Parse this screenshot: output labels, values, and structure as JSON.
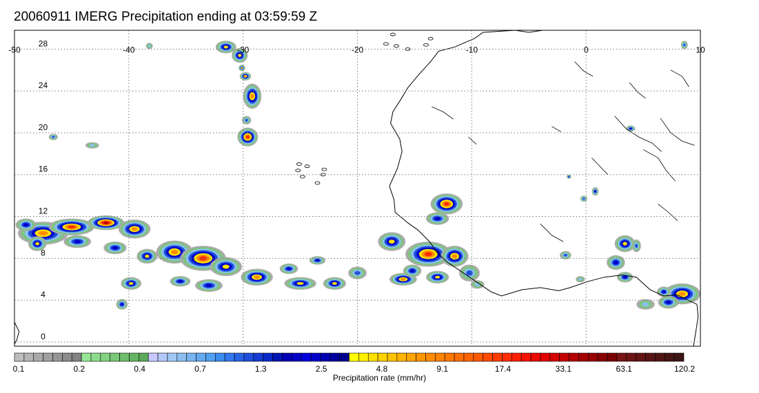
{
  "title": "20060911 IMERG Precipitation ending at 03:59:59 Z",
  "map": {
    "lon_range": [
      -50,
      10
    ],
    "lat_range": [
      -0.4,
      29.8
    ],
    "lon_labels": [
      "-50",
      "-40",
      "-30",
      "-20",
      "-10",
      "0",
      "10"
    ],
    "lon_values": [
      -50,
      -40,
      -30,
      -20,
      -10,
      0,
      10
    ],
    "lat_labels": [
      "28",
      "24",
      "20",
      "16",
      "12",
      "8",
      "4",
      "0"
    ],
    "lat_values": [
      28,
      24,
      20,
      16,
      12,
      8,
      4,
      0
    ],
    "gridlines": "dotted"
  },
  "colorbar": {
    "title": "Precipitation rate (mm/hr)",
    "tick_labels": [
      "0.1",
      "0.2",
      "0.4",
      "0.7",
      "1.3",
      "2.5",
      "4.8",
      "9.1",
      "17.4",
      "33.1",
      "63.1",
      "120.2"
    ],
    "colors": [
      "#bebebe",
      "#b4b4b4",
      "#aaaaaa",
      "#a0a0a0",
      "#969696",
      "#8c8c8c",
      "#828282",
      "#96e696",
      "#8cdc8c",
      "#82d282",
      "#78c878",
      "#6ebe6e",
      "#64b464",
      "#5aaa5a",
      "#c8c8ff",
      "#b4c8fa",
      "#a0c8f5",
      "#8cbef0",
      "#78b4f0",
      "#64aaf0",
      "#50a0f0",
      "#3c8cf0",
      "#3278f0",
      "#2864e6",
      "#1e50dc",
      "#143cd2",
      "#0a28c8",
      "#0014b4",
      "#0000b4",
      "#0000c8",
      "#0000dc",
      "#0000c8",
      "#0000b4",
      "#0000a0",
      "#00008c",
      "#ffff00",
      "#fff000",
      "#ffe100",
      "#ffd200",
      "#ffc300",
      "#ffb400",
      "#ffa500",
      "#ff9600",
      "#ff8c00",
      "#ff8200",
      "#ff7800",
      "#ff6e00",
      "#ff6400",
      "#ff5a00",
      "#ff4b00",
      "#ff3c00",
      "#ff2d00",
      "#ff1e00",
      "#f51400",
      "#eb0a00",
      "#e10000",
      "#d20000",
      "#c30000",
      "#b40000",
      "#a50000",
      "#960000",
      "#870000",
      "#780000",
      "#781414",
      "#6e1414",
      "#641414",
      "#5a1414",
      "#501414",
      "#461414",
      "#3c1414"
    ]
  },
  "precip_palette": {
    "light": "#aaaaaa",
    "green": "#78c878",
    "lightblue": "#8cbef0",
    "blue": "#1e50dc",
    "darkblue": "#0000c8",
    "yellow": "#ffe100",
    "orange": "#ff8c00",
    "red": "#ff2d00",
    "darkred": "#b40000"
  },
  "coastline_color": "#000000"
}
